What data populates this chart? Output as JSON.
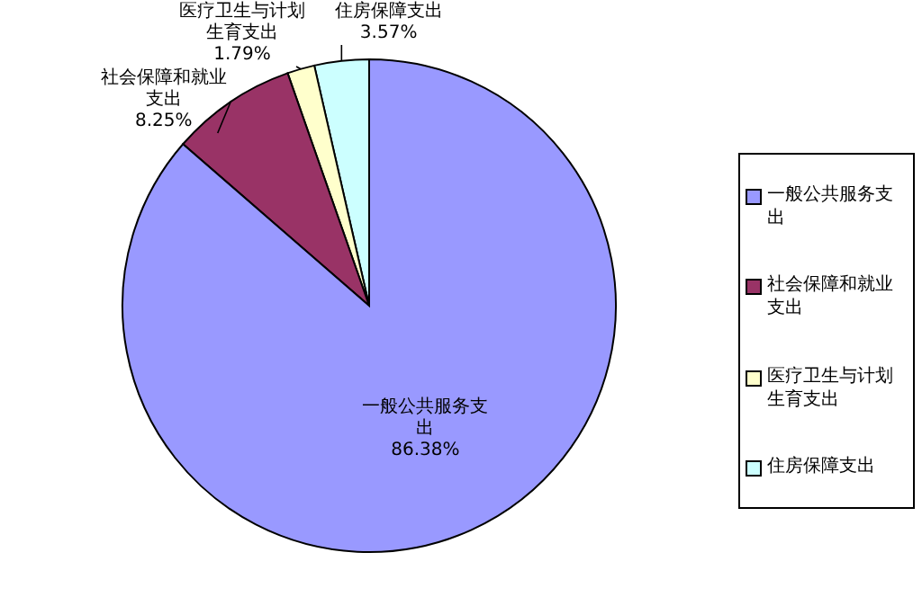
{
  "chart_data": {
    "type": "pie",
    "categories": [
      "一般公共服务支出",
      "社会保障和就业支出",
      "医疗卫生与计划生育支出",
      "住房保障支出"
    ],
    "values": [
      86.38,
      8.25,
      1.79,
      3.57
    ],
    "colors": [
      "#9999ff",
      "#993366",
      "#ffffcc",
      "#ccffff"
    ],
    "value_labels": [
      "86.38%",
      "8.25%",
      "1.79%",
      "3.57%"
    ],
    "legend": "right"
  }
}
